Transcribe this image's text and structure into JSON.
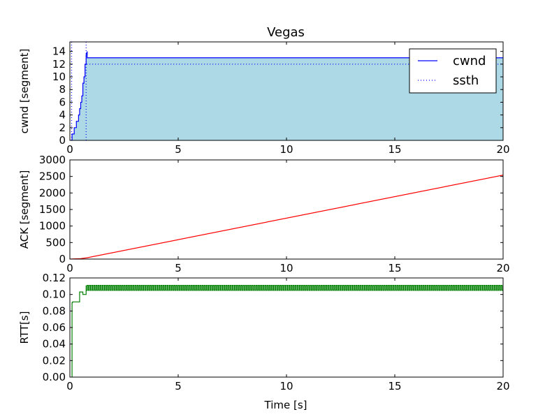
{
  "title": "Vegas",
  "x_axis_label": "Time [s]",
  "chart_data": [
    {
      "type": "area",
      "panel": "cwnd",
      "ylabel": "cwnd [segment]",
      "xlim": [
        0,
        20
      ],
      "ylim": [
        0,
        15.5
      ],
      "x_ticks": [
        "0",
        "5",
        "10",
        "15",
        "20"
      ],
      "y_ticks": [
        "0",
        "2",
        "4",
        "6",
        "8",
        "10",
        "12",
        "14"
      ],
      "fill_color": "#add8e6",
      "legend": {
        "placement": "top-right",
        "entries": [
          {
            "label": "cwnd",
            "style": "solid",
            "color": "#0000ff"
          },
          {
            "label": "ssth",
            "style": "dotted",
            "color": "#0000ff"
          }
        ]
      },
      "series": [
        {
          "name": "cwnd",
          "color": "#0000ff",
          "style": "solid",
          "x": [
            0.0,
            0.1,
            0.1,
            0.2,
            0.2,
            0.3,
            0.3,
            0.4,
            0.4,
            0.45,
            0.45,
            0.5,
            0.5,
            0.55,
            0.55,
            0.6,
            0.6,
            0.65,
            0.65,
            0.7,
            0.7,
            0.75,
            0.75,
            0.8,
            0.8,
            20.0
          ],
          "y": [
            0,
            0,
            1,
            1,
            2,
            2,
            3,
            3,
            4,
            4,
            5,
            5,
            6,
            6,
            7,
            7,
            9,
            9,
            10,
            10,
            12,
            12,
            13.5,
            14,
            13,
            13
          ]
        },
        {
          "name": "ssth",
          "color": "#0000ff",
          "style": "dotted",
          "segments": [
            {
              "x": [
                0.08,
                0.08
              ],
              "y": [
                0,
                15.5
              ]
            },
            {
              "x": [
                0.75,
                0.75
              ],
              "y": [
                0,
                15.5
              ]
            },
            {
              "x": [
                0.78,
                20.0
              ],
              "y": [
                12,
                12
              ]
            }
          ]
        }
      ]
    },
    {
      "type": "line",
      "panel": "ack",
      "ylabel": "ACK [segment]",
      "xlim": [
        0,
        20
      ],
      "ylim": [
        0,
        3000
      ],
      "x_ticks": [
        "0",
        "5",
        "10",
        "15",
        "20"
      ],
      "y_ticks": [
        "0",
        "500",
        "1000",
        "1500",
        "2000",
        "2500",
        "3000"
      ],
      "series": [
        {
          "name": "ACK",
          "color": "#ff0000",
          "x": [
            0,
            0.5,
            0.8,
            20
          ],
          "y": [
            0,
            15,
            40,
            2540
          ]
        }
      ]
    },
    {
      "type": "line",
      "panel": "rtt",
      "ylabel": "RTT[s]",
      "xlabel": "Time [s]",
      "xlim": [
        0,
        20
      ],
      "ylim": [
        0,
        0.12
      ],
      "x_ticks": [
        "0",
        "5",
        "10",
        "15",
        "20"
      ],
      "y_ticks": [
        "0.00",
        "0.02",
        "0.04",
        "0.06",
        "0.08",
        "0.10",
        "0.12"
      ],
      "series": [
        {
          "name": "RTT",
          "color": "#008000",
          "x": [
            0.1,
            0.1,
            0.12,
            0.12,
            0.45,
            0.45,
            0.6,
            0.6,
            0.75,
            0.75
          ],
          "y": [
            0.0,
            0.09,
            0.09,
            0.091,
            0.091,
            0.103,
            0.103,
            0.1,
            0.1,
            0.11
          ],
          "oscillation": {
            "x_start": 0.75,
            "x_end": 20,
            "period": 0.1,
            "low": 0.105,
            "high": 0.111
          }
        }
      ]
    }
  ]
}
